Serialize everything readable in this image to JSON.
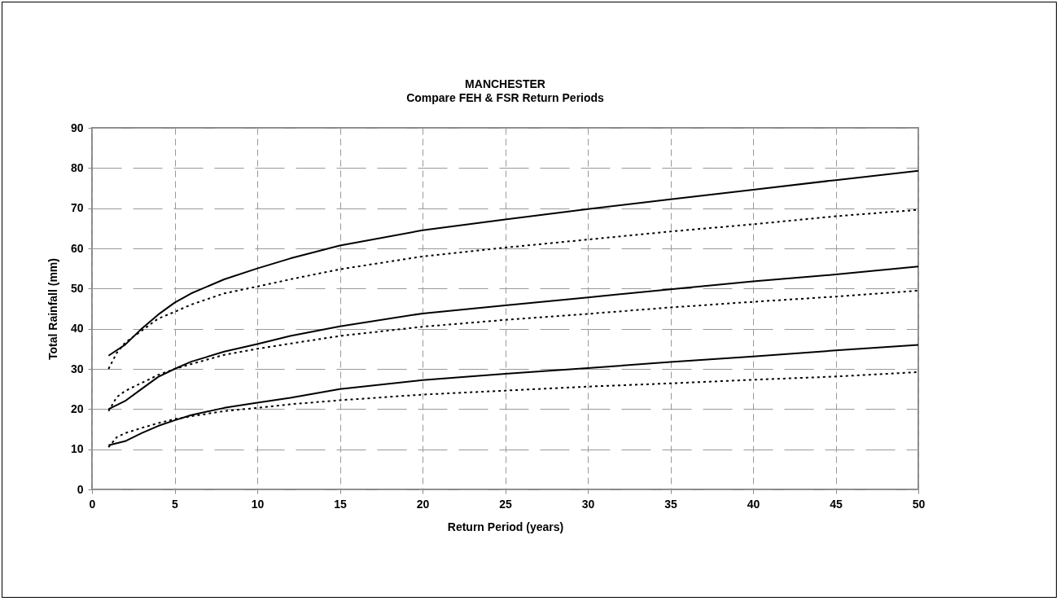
{
  "chart_data": {
    "type": "line",
    "title": "MANCHESTER",
    "subtitle": "Compare FEH & FSR Return Periods",
    "xlabel": "Return Period (years)",
    "ylabel": "Total Rainfall (mm)",
    "xlim": [
      0,
      50
    ],
    "xticks": [
      0,
      5,
      10,
      15,
      20,
      25,
      30,
      35,
      40,
      45,
      50
    ],
    "ylim": [
      0,
      90
    ],
    "yticks": [
      0,
      10,
      20,
      30,
      40,
      50,
      60,
      70,
      80,
      90
    ],
    "grid": true,
    "marker": "none",
    "series": [
      {
        "color": "#000000",
        "line_style": "solid",
        "x": [
          1,
          2,
          3,
          4,
          5,
          6,
          8,
          10,
          12,
          15,
          20,
          25,
          30,
          35,
          40,
          45,
          50
        ],
        "values": [
          33.3,
          36,
          40,
          43.5,
          46.5,
          48.8,
          52.3,
          55,
          57.5,
          60.7,
          64.5,
          67.2,
          69.8,
          72.2,
          74.6,
          77,
          79.3
        ]
      },
      {
        "color": "#000000",
        "line_style": "dotted",
        "x": [
          1,
          1.5,
          2,
          3,
          4,
          5,
          6,
          8,
          10,
          12,
          15,
          20,
          25,
          30,
          35,
          40,
          45,
          50
        ],
        "values": [
          30,
          34,
          36.5,
          39.5,
          42.5,
          44.2,
          46,
          48.8,
          50.5,
          52.3,
          54.8,
          58,
          60.2,
          62.2,
          64.2,
          66,
          68,
          69.6
        ]
      },
      {
        "color": "#000000",
        "line_style": "solid",
        "x": [
          1,
          2,
          3,
          4,
          5,
          6,
          8,
          10,
          12,
          15,
          20,
          25,
          30,
          35,
          40,
          45,
          50
        ],
        "values": [
          20,
          22,
          25,
          28,
          30,
          31.8,
          34.3,
          36.2,
          38.2,
          40.6,
          43.8,
          45.8,
          47.8,
          49.8,
          51.8,
          53.5,
          55.5
        ]
      },
      {
        "color": "#000000",
        "line_style": "dotted",
        "x": [
          1,
          1.5,
          2,
          3,
          4,
          5,
          6,
          8,
          10,
          12,
          15,
          20,
          25,
          30,
          35,
          40,
          45,
          50
        ],
        "values": [
          19.5,
          23,
          24.5,
          26.5,
          28.5,
          30,
          31.2,
          33.5,
          35,
          36.3,
          38.2,
          40.5,
          42.2,
          43.7,
          45.3,
          46.7,
          48,
          49.5
        ]
      },
      {
        "color": "#000000",
        "line_style": "solid",
        "x": [
          1,
          2,
          3,
          4,
          5,
          6,
          8,
          10,
          12,
          15,
          20,
          25,
          30,
          35,
          40,
          45,
          50
        ],
        "values": [
          11,
          12,
          14,
          15.8,
          17.2,
          18.5,
          20.3,
          21.6,
          22.8,
          25,
          27.2,
          28.8,
          30.2,
          31.7,
          33.1,
          34.6,
          36
        ]
      },
      {
        "color": "#000000",
        "line_style": "dotted",
        "x": [
          1,
          1.5,
          2,
          3,
          4,
          5,
          6,
          8,
          10,
          12,
          15,
          20,
          25,
          30,
          35,
          40,
          45,
          50
        ],
        "values": [
          10.5,
          13,
          14,
          15.3,
          16.5,
          17.5,
          18.2,
          19.5,
          20.3,
          21.2,
          22.2,
          23.6,
          24.6,
          25.6,
          26.4,
          27.3,
          28.1,
          29.2
        ]
      }
    ]
  }
}
